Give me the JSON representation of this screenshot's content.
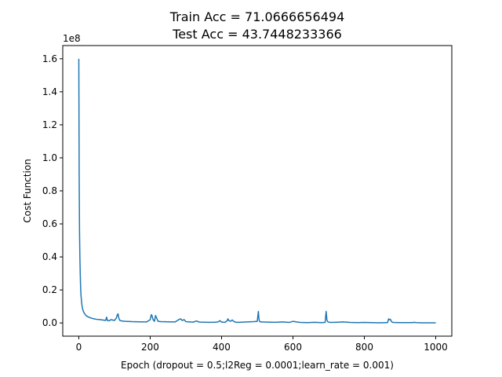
{
  "chart_data": {
    "type": "line",
    "title_lines": [
      "Train Acc = 71.0666656494",
      "Test Acc = 43.7448233366"
    ],
    "xlabel": "Epoch (dropout = 0.5;l2Reg = 0.0001;learn_rate = 0.001)",
    "ylabel": "Cost Function",
    "y_offset_label": "1e8",
    "xlim": [
      -45,
      1045
    ],
    "ylim": [
      -0.08,
      1.68
    ],
    "x_ticks": [
      0,
      200,
      400,
      600,
      800,
      1000
    ],
    "x_tick_labels": [
      "0",
      "200",
      "400",
      "600",
      "800",
      "1000"
    ],
    "y_ticks": [
      0.0,
      0.2,
      0.4,
      0.6,
      0.8,
      1.0,
      1.2,
      1.4,
      1.6
    ],
    "y_tick_labels": [
      "0.0",
      "0.2",
      "0.4",
      "0.6",
      "0.8",
      "1.0",
      "1.2",
      "1.4",
      "1.6"
    ],
    "grid": false,
    "series": [
      {
        "color": "#1f77b4",
        "x": [
          0,
          1,
          2,
          3,
          4,
          5,
          6,
          8,
          10,
          12,
          15,
          20,
          25,
          30,
          40,
          50,
          60,
          70,
          75,
          78,
          80,
          85,
          90,
          100,
          105,
          108,
          110,
          112,
          115,
          120,
          130,
          150,
          170,
          190,
          200,
          203,
          205,
          208,
          212,
          215,
          218,
          222,
          230,
          250,
          270,
          280,
          285,
          290,
          295,
          300,
          320,
          330,
          335,
          340,
          360,
          380,
          390,
          395,
          400,
          410,
          415,
          418,
          420,
          425,
          430,
          435,
          440,
          450,
          470,
          490,
          500,
          503,
          505,
          507,
          510,
          530,
          550,
          570,
          590,
          600,
          620,
          640,
          660,
          680,
          690,
          693,
          695,
          697,
          700,
          705,
          720,
          740,
          760,
          780,
          800,
          820,
          840,
          860,
          865,
          868,
          870,
          873,
          876,
          880,
          900,
          920,
          935,
          940,
          945,
          960,
          980,
          1000
        ],
        "y": [
          1.6,
          0.9,
          0.55,
          0.4,
          0.3,
          0.22,
          0.17,
          0.12,
          0.09,
          0.075,
          0.06,
          0.045,
          0.038,
          0.033,
          0.026,
          0.022,
          0.02,
          0.017,
          0.015,
          0.035,
          0.015,
          0.013,
          0.02,
          0.015,
          0.03,
          0.05,
          0.055,
          0.03,
          0.015,
          0.012,
          0.01,
          0.008,
          0.007,
          0.006,
          0.02,
          0.05,
          0.045,
          0.02,
          0.01,
          0.045,
          0.03,
          0.01,
          0.008,
          0.007,
          0.006,
          0.02,
          0.025,
          0.015,
          0.02,
          0.008,
          0.005,
          0.012,
          0.007,
          0.005,
          0.004,
          0.004,
          0.006,
          0.014,
          0.005,
          0.004,
          0.012,
          0.025,
          0.015,
          0.01,
          0.018,
          0.008,
          0.004,
          0.004,
          0.006,
          0.008,
          0.01,
          0.07,
          0.02,
          0.008,
          0.006,
          0.005,
          0.004,
          0.006,
          0.003,
          0.01,
          0.003,
          0.002,
          0.004,
          0.002,
          0.003,
          0.07,
          0.02,
          0.008,
          0.005,
          0.003,
          0.004,
          0.006,
          0.003,
          0.002,
          0.003,
          0.002,
          0.001,
          0.002,
          0.002,
          0.025,
          0.02,
          0.022,
          0.008,
          0.003,
          0.002,
          0.002,
          0.002,
          0.004,
          0.002,
          0.001,
          0.001,
          0.001
        ]
      }
    ]
  }
}
